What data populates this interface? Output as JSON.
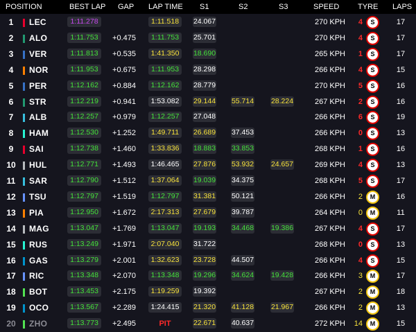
{
  "header": {
    "position": "POSITION",
    "best_lap": "BEST LAP",
    "gap": "GAP",
    "lap_time": "LAP TIME",
    "s1": "S1",
    "s2": "S2",
    "s3": "S3",
    "speed": "SPEED",
    "tyre": "TYRE",
    "laps": "LAPS"
  },
  "colors": {
    "background": "#15151e",
    "header_background": "#000000",
    "purple": "#c848f0",
    "green": "#44e23a",
    "yellow": "#f7e23b",
    "pit_red": "#ff2a2a",
    "soft_tyre": "#e10600",
    "medium_tyre": "#f1c40f"
  },
  "rows": [
    {
      "pos": "1",
      "driver": "LEC",
      "team_color": "#e8002d",
      "best": "1:11.278",
      "best_c": "purple",
      "gap": "",
      "lap": "1:11.518",
      "lap_c": "yellow",
      "s1": "24.067",
      "s1_c": "white",
      "s2": "",
      "s2_c": "white",
      "s3": "",
      "s3_c": "white",
      "speed": "270 KPH",
      "tyre_laps": "4",
      "tyre_laps_c": "red",
      "tyre": "S",
      "tyre_type": "soft",
      "laps": "17"
    },
    {
      "pos": "2",
      "driver": "ALO",
      "team_color": "#229971",
      "best": "1:11.753",
      "best_c": "green",
      "gap": "+0.475",
      "lap": "1:11.753",
      "lap_c": "green",
      "s1": "25.701",
      "s1_c": "white",
      "s2": "",
      "s2_c": "white",
      "s3": "",
      "s3_c": "white",
      "speed": "270 KPH",
      "tyre_laps": "4",
      "tyre_laps_c": "red",
      "tyre": "S",
      "tyre_type": "soft",
      "laps": "17"
    },
    {
      "pos": "3",
      "driver": "VER",
      "team_color": "#3671c6",
      "best": "1:11.813",
      "best_c": "green",
      "gap": "+0.535",
      "lap": "1:41.350",
      "lap_c": "yellow",
      "s1": "18.690",
      "s1_c": "green",
      "s2": "",
      "s2_c": "white",
      "s3": "",
      "s3_c": "white",
      "speed": "265 KPH",
      "tyre_laps": "1",
      "tyre_laps_c": "red",
      "tyre": "S",
      "tyre_type": "soft",
      "laps": "17"
    },
    {
      "pos": "4",
      "driver": "NOR",
      "team_color": "#ff8000",
      "best": "1:11.953",
      "best_c": "green",
      "gap": "+0.675",
      "lap": "1:11.953",
      "lap_c": "green",
      "s1": "28.298",
      "s1_c": "white",
      "s2": "",
      "s2_c": "white",
      "s3": "",
      "s3_c": "white",
      "speed": "266 KPH",
      "tyre_laps": "4",
      "tyre_laps_c": "red",
      "tyre": "S",
      "tyre_type": "soft",
      "laps": "15"
    },
    {
      "pos": "5",
      "driver": "PER",
      "team_color": "#3671c6",
      "best": "1:12.162",
      "best_c": "green",
      "gap": "+0.884",
      "lap": "1:12.162",
      "lap_c": "green",
      "s1": "28.779",
      "s1_c": "white",
      "s2": "",
      "s2_c": "white",
      "s3": "",
      "s3_c": "white",
      "speed": "270 KPH",
      "tyre_laps": "5",
      "tyre_laps_c": "red",
      "tyre": "S",
      "tyre_type": "soft",
      "laps": "16"
    },
    {
      "pos": "6",
      "driver": "STR",
      "team_color": "#229971",
      "best": "1:12.219",
      "best_c": "green",
      "gap": "+0.941",
      "lap": "1:53.082",
      "lap_c": "white",
      "s1": "29.144",
      "s1_c": "yellow",
      "s2": "55.714",
      "s2_c": "yellow",
      "s3": "28.224",
      "s3_c": "yellow",
      "speed": "267 KPH",
      "tyre_laps": "2",
      "tyre_laps_c": "red",
      "tyre": "S",
      "tyre_type": "soft",
      "laps": "16"
    },
    {
      "pos": "7",
      "driver": "ALB",
      "team_color": "#37bedd",
      "best": "1:12.257",
      "best_c": "green",
      "gap": "+0.979",
      "lap": "1:12.257",
      "lap_c": "green",
      "s1": "27.048",
      "s1_c": "white",
      "s2": "",
      "s2_c": "white",
      "s3": "",
      "s3_c": "white",
      "speed": "266 KPH",
      "tyre_laps": "6",
      "tyre_laps_c": "red",
      "tyre": "S",
      "tyre_type": "soft",
      "laps": "19"
    },
    {
      "pos": "8",
      "driver": "HAM",
      "team_color": "#27f4d2",
      "best": "1:12.530",
      "best_c": "green",
      "gap": "+1.252",
      "lap": "1:49.711",
      "lap_c": "yellow",
      "s1": "26.689",
      "s1_c": "yellow",
      "s2": "37.453",
      "s2_c": "white",
      "s3": "",
      "s3_c": "white",
      "speed": "266 KPH",
      "tyre_laps": "0",
      "tyre_laps_c": "red",
      "tyre": "S",
      "tyre_type": "soft",
      "laps": "13"
    },
    {
      "pos": "9",
      "driver": "SAI",
      "team_color": "#e8002d",
      "best": "1:12.738",
      "best_c": "green",
      "gap": "+1.460",
      "lap": "1:33.836",
      "lap_c": "yellow",
      "s1": "18.883",
      "s1_c": "green",
      "s2": "33.853",
      "s2_c": "green",
      "s3": "",
      "s3_c": "white",
      "speed": "268 KPH",
      "tyre_laps": "1",
      "tyre_laps_c": "red",
      "tyre": "S",
      "tyre_type": "soft",
      "laps": "16"
    },
    {
      "pos": "10",
      "driver": "HUL",
      "team_color": "#b6babd",
      "best": "1:12.771",
      "best_c": "green",
      "gap": "+1.493",
      "lap": "1:46.465",
      "lap_c": "white",
      "s1": "27.876",
      "s1_c": "yellow",
      "s2": "53.932",
      "s2_c": "yellow",
      "s3": "24.657",
      "s3_c": "yellow",
      "speed": "269 KPH",
      "tyre_laps": "4",
      "tyre_laps_c": "red",
      "tyre": "S",
      "tyre_type": "soft",
      "laps": "13"
    },
    {
      "pos": "11",
      "driver": "SAR",
      "team_color": "#37bedd",
      "best": "1:12.790",
      "best_c": "green",
      "gap": "+1.512",
      "lap": "1:37.064",
      "lap_c": "yellow",
      "s1": "19.039",
      "s1_c": "green",
      "s2": "34.375",
      "s2_c": "white",
      "s3": "",
      "s3_c": "white",
      "speed": "268 KPH",
      "tyre_laps": "5",
      "tyre_laps_c": "red",
      "tyre": "S",
      "tyre_type": "soft",
      "laps": "17"
    },
    {
      "pos": "12",
      "driver": "TSU",
      "team_color": "#6692ff",
      "best": "1:12.797",
      "best_c": "green",
      "gap": "+1.519",
      "lap": "1:12.797",
      "lap_c": "green",
      "s1": "31.381",
      "s1_c": "yellow",
      "s2": "50.121",
      "s2_c": "white",
      "s3": "",
      "s3_c": "white",
      "speed": "266 KPH",
      "tyre_laps": "2",
      "tyre_laps_c": "yellow",
      "tyre": "M",
      "tyre_type": "medium",
      "laps": "16"
    },
    {
      "pos": "13",
      "driver": "PIA",
      "team_color": "#ff8000",
      "best": "1:12.950",
      "best_c": "green",
      "gap": "+1.672",
      "lap": "2:17.313",
      "lap_c": "yellow",
      "s1": "27.679",
      "s1_c": "yellow",
      "s2": "39.787",
      "s2_c": "white",
      "s3": "",
      "s3_c": "white",
      "speed": "264 KPH",
      "tyre_laps": "0",
      "tyre_laps_c": "yellow",
      "tyre": "M",
      "tyre_type": "medium",
      "laps": "11"
    },
    {
      "pos": "14",
      "driver": "MAG",
      "team_color": "#b6babd",
      "best": "1:13.047",
      "best_c": "green",
      "gap": "+1.769",
      "lap": "1:13.047",
      "lap_c": "green",
      "s1": "19.193",
      "s1_c": "green",
      "s2": "34.468",
      "s2_c": "green",
      "s3": "19.386",
      "s3_c": "green",
      "speed": "267 KPH",
      "tyre_laps": "4",
      "tyre_laps_c": "red",
      "tyre": "S",
      "tyre_type": "soft",
      "laps": "17"
    },
    {
      "pos": "15",
      "driver": "RUS",
      "team_color": "#27f4d2",
      "best": "1:13.249",
      "best_c": "green",
      "gap": "+1.971",
      "lap": "2:07.040",
      "lap_c": "yellow",
      "s1": "31.722",
      "s1_c": "white",
      "s2": "",
      "s2_c": "white",
      "s3": "",
      "s3_c": "white",
      "speed": "268 KPH",
      "tyre_laps": "0",
      "tyre_laps_c": "red",
      "tyre": "S",
      "tyre_type": "soft",
      "laps": "13"
    },
    {
      "pos": "16",
      "driver": "GAS",
      "team_color": "#0093cc",
      "best": "1:13.279",
      "best_c": "green",
      "gap": "+2.001",
      "lap": "1:32.623",
      "lap_c": "yellow",
      "s1": "23.728",
      "s1_c": "yellow",
      "s2": "44.507",
      "s2_c": "white",
      "s3": "",
      "s3_c": "white",
      "speed": "266 KPH",
      "tyre_laps": "4",
      "tyre_laps_c": "red",
      "tyre": "S",
      "tyre_type": "soft",
      "laps": "15"
    },
    {
      "pos": "17",
      "driver": "RIC",
      "team_color": "#6692ff",
      "best": "1:13.348",
      "best_c": "green",
      "gap": "+2.070",
      "lap": "1:13.348",
      "lap_c": "green",
      "s1": "19.296",
      "s1_c": "green",
      "s2": "34.624",
      "s2_c": "green",
      "s3": "19.428",
      "s3_c": "green",
      "speed": "266 KPH",
      "tyre_laps": "3",
      "tyre_laps_c": "yellow",
      "tyre": "M",
      "tyre_type": "medium",
      "laps": "17"
    },
    {
      "pos": "18",
      "driver": "BOT",
      "team_color": "#52e252",
      "best": "1:13.453",
      "best_c": "green",
      "gap": "+2.175",
      "lap": "1:19.259",
      "lap_c": "yellow",
      "s1": "19.392",
      "s1_c": "white",
      "s2": "",
      "s2_c": "white",
      "s3": "",
      "s3_c": "white",
      "speed": "267 KPH",
      "tyre_laps": "2",
      "tyre_laps_c": "yellow",
      "tyre": "M",
      "tyre_type": "medium",
      "laps": "18"
    },
    {
      "pos": "19",
      "driver": "OCO",
      "team_color": "#0093cc",
      "best": "1:13.567",
      "best_c": "green",
      "gap": "+2.289",
      "lap": "1:24.415",
      "lap_c": "white",
      "s1": "21.320",
      "s1_c": "yellow",
      "s2": "41.128",
      "s2_c": "yellow",
      "s3": "21.967",
      "s3_c": "yellow",
      "speed": "266 KPH",
      "tyre_laps": "2",
      "tyre_laps_c": "yellow",
      "tyre": "M",
      "tyre_type": "medium",
      "laps": "13"
    },
    {
      "pos": "20",
      "driver": "ZHO",
      "team_color": "#52e252",
      "best": "1:13.773",
      "best_c": "green",
      "gap": "+2.495",
      "lap": "PIT",
      "lap_c": "red",
      "s1": "22.671",
      "s1_c": "yellow",
      "s2": "40.637",
      "s2_c": "white",
      "s3": "",
      "s3_c": "white",
      "speed": "272 KPH",
      "tyre_laps": "14",
      "tyre_laps_c": "yellow",
      "tyre": "M",
      "tyre_type": "medium",
      "laps": "15",
      "dim": true
    }
  ]
}
